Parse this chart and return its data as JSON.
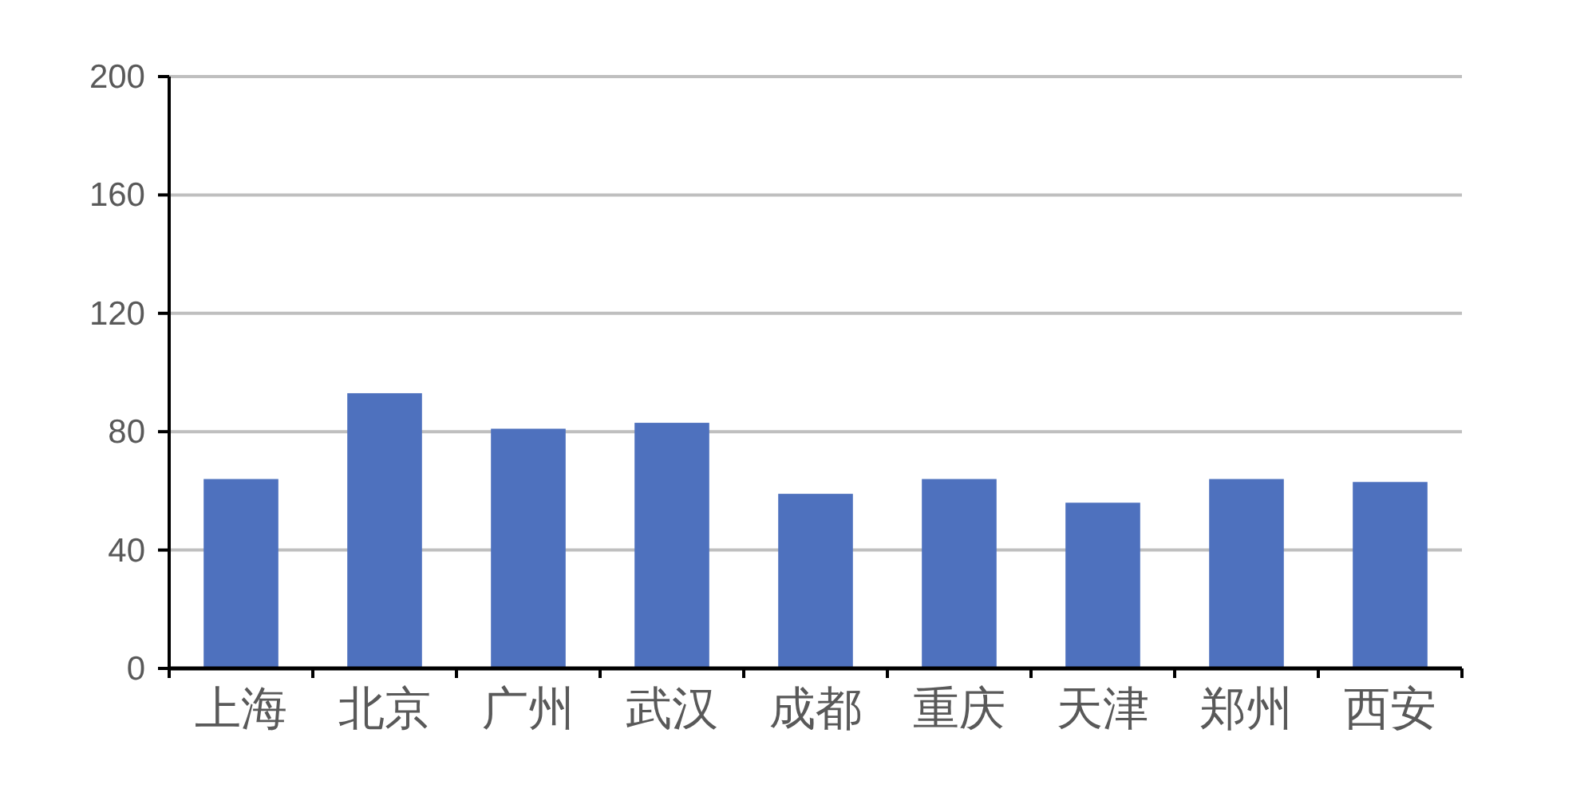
{
  "chart_data": {
    "type": "bar",
    "categories": [
      "上海",
      "北京",
      "广州",
      "武汉",
      "成都",
      "重庆",
      "天津",
      "郑州",
      "西安"
    ],
    "values": [
      64,
      93,
      81,
      83,
      59,
      64,
      56,
      64,
      63
    ],
    "color": "#4e71be",
    "ylim": [
      0,
      200
    ],
    "yticks": [
      0,
      40,
      80,
      120,
      160,
      200
    ],
    "grid": "y"
  }
}
